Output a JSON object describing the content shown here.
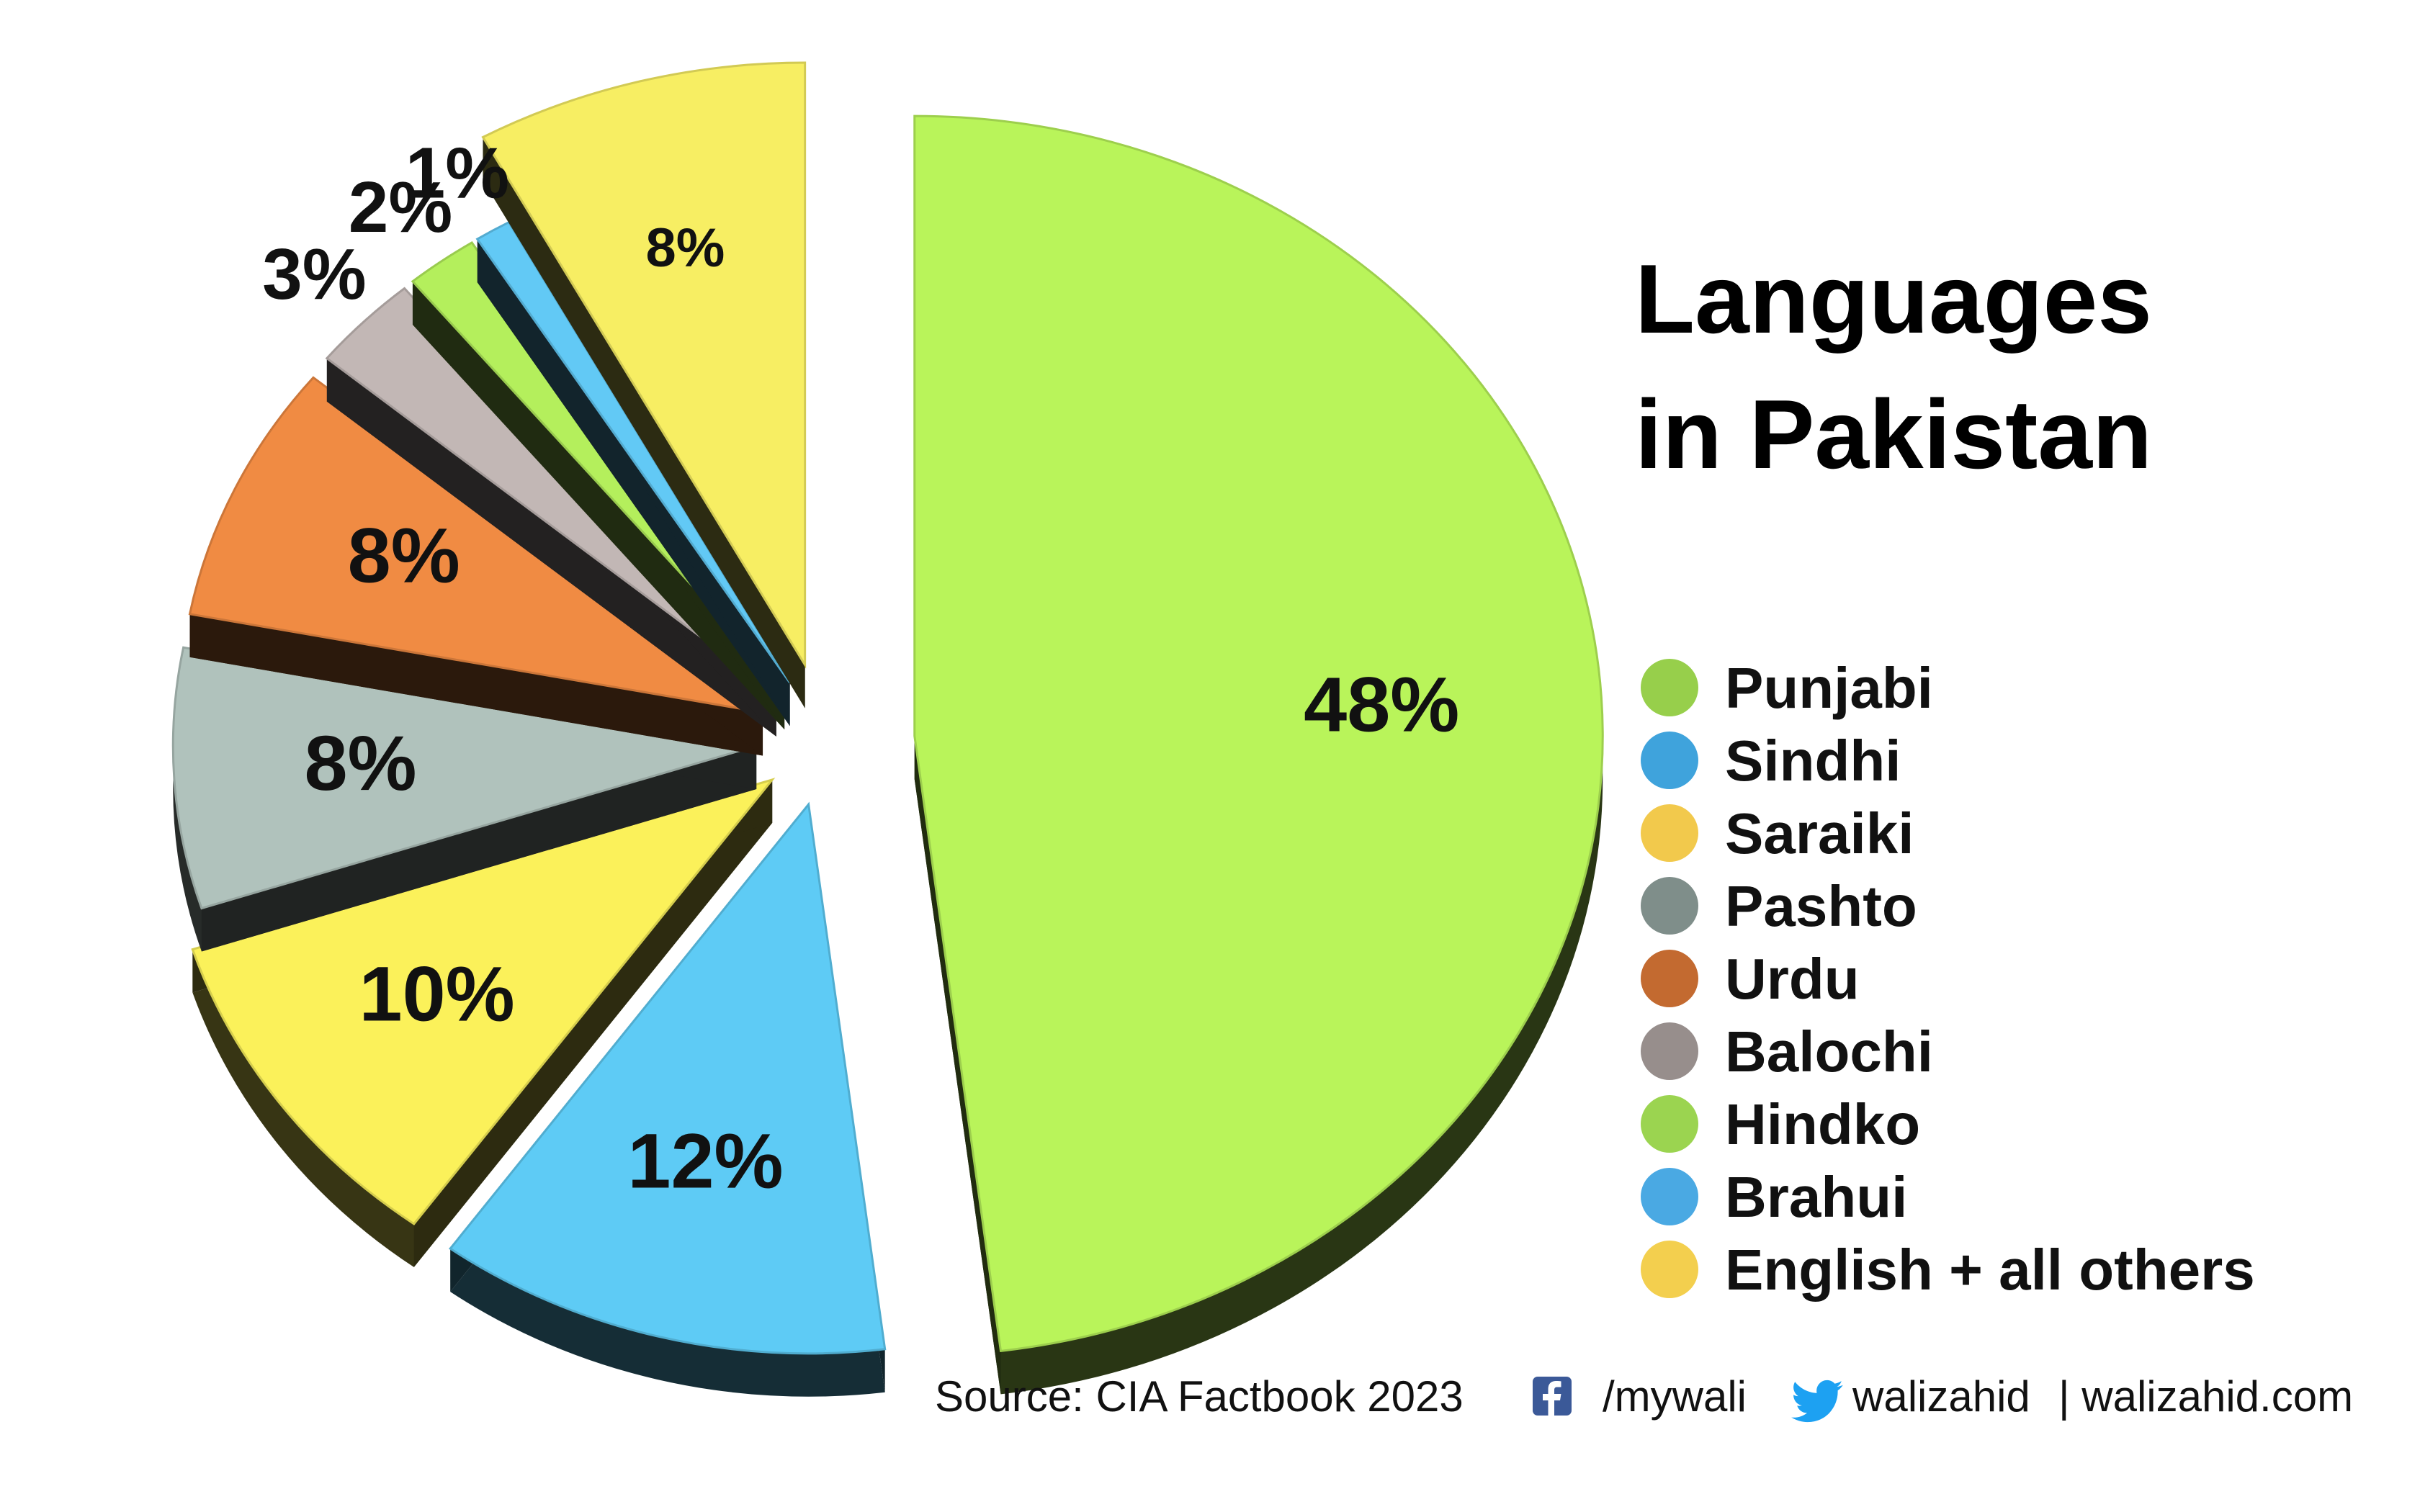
{
  "chart_data": {
    "type": "pie",
    "title": "Languages in Pakistan",
    "title_lines": [
      "Languages",
      "in Pakistan"
    ],
    "style": "3d exploded",
    "legend_position": "right",
    "slices": [
      {
        "name": "Punjabi",
        "value": 48,
        "label": "48%",
        "color": "#b9f45a",
        "legend_color": "#97cf4b"
      },
      {
        "name": "Sindhi",
        "value": 12,
        "label": "12%",
        "color": "#5ecbf5",
        "legend_color": "#3fa3dc"
      },
      {
        "name": "Saraiki",
        "value": 10,
        "label": "10%",
        "color": "#fbf15a",
        "legend_color": "#f2c94c"
      },
      {
        "name": "Pashto",
        "value": 8,
        "label": "8%",
        "color": "#b0c2bc",
        "legend_color": "#7f8e8a"
      },
      {
        "name": "Urdu",
        "value": 8,
        "label": "8%",
        "color": "#f08b43",
        "legend_color": "#c36a30"
      },
      {
        "name": "Balochi",
        "value": 3,
        "label": "3%",
        "color": "#c2b7b5",
        "legend_color": "#978e8c"
      },
      {
        "name": "Hindko",
        "value": 2,
        "label": "2%",
        "color": "#b4ef5c",
        "legend_color": "#9bd450"
      },
      {
        "name": "Brahui",
        "value": 1,
        "label": "1%",
        "color": "#62c9f5",
        "legend_color": "#4aa9e3"
      },
      {
        "name": "English + all others",
        "value": 8,
        "label": "8%",
        "color": "#f7ee63",
        "legend_color": "#f3cf4e"
      }
    ]
  },
  "footer": {
    "source": "Source: CIA Factbook 2023",
    "facebook_icon": "facebook-icon",
    "facebook_handle": "/mywali",
    "twitter_icon": "twitter-bird-icon",
    "twitter_handle": "walizahid",
    "website": "| walizahid.com",
    "facebook_color": "#3b5998",
    "twitter_color": "#1da1f2"
  }
}
